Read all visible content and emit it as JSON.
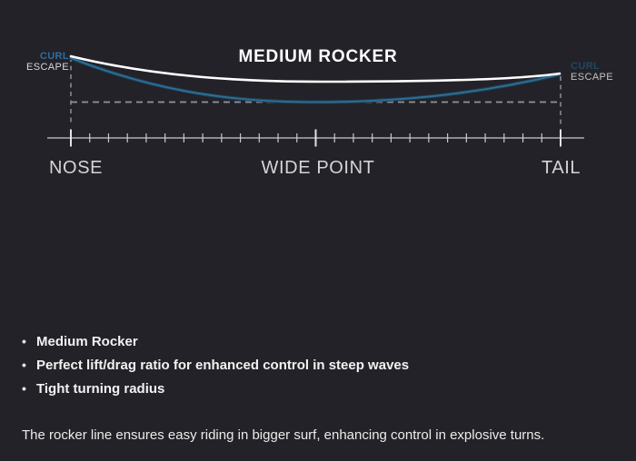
{
  "diagram": {
    "title": "MEDIUM ROCKER",
    "left_annotation": {
      "line1": "CURL",
      "line2": "ESCAPE"
    },
    "right_annotation": {
      "line1": "CURL",
      "line2": "ESCAPE"
    },
    "axis": {
      "nose": "NOSE",
      "wide_point": "WIDE POINT",
      "tail": "TAIL"
    },
    "colors": {
      "background": "#222228",
      "deck_curve": "#ffffff",
      "rocker_curve": "#2f6f96",
      "curl_text_left": "#2d6da3",
      "curl_text_right": "#1d4a66",
      "escape_text": "#dadada",
      "dashed_guides": "#95959c",
      "ruler": "#c9cacb"
    }
  },
  "features": [
    "Medium Rocker",
    "Perfect lift/drag ratio for enhanced control in steep waves",
    "Tight turning radius"
  ],
  "description": "The rocker line ensures easy riding in bigger surf, enhancing control in explosive turns."
}
